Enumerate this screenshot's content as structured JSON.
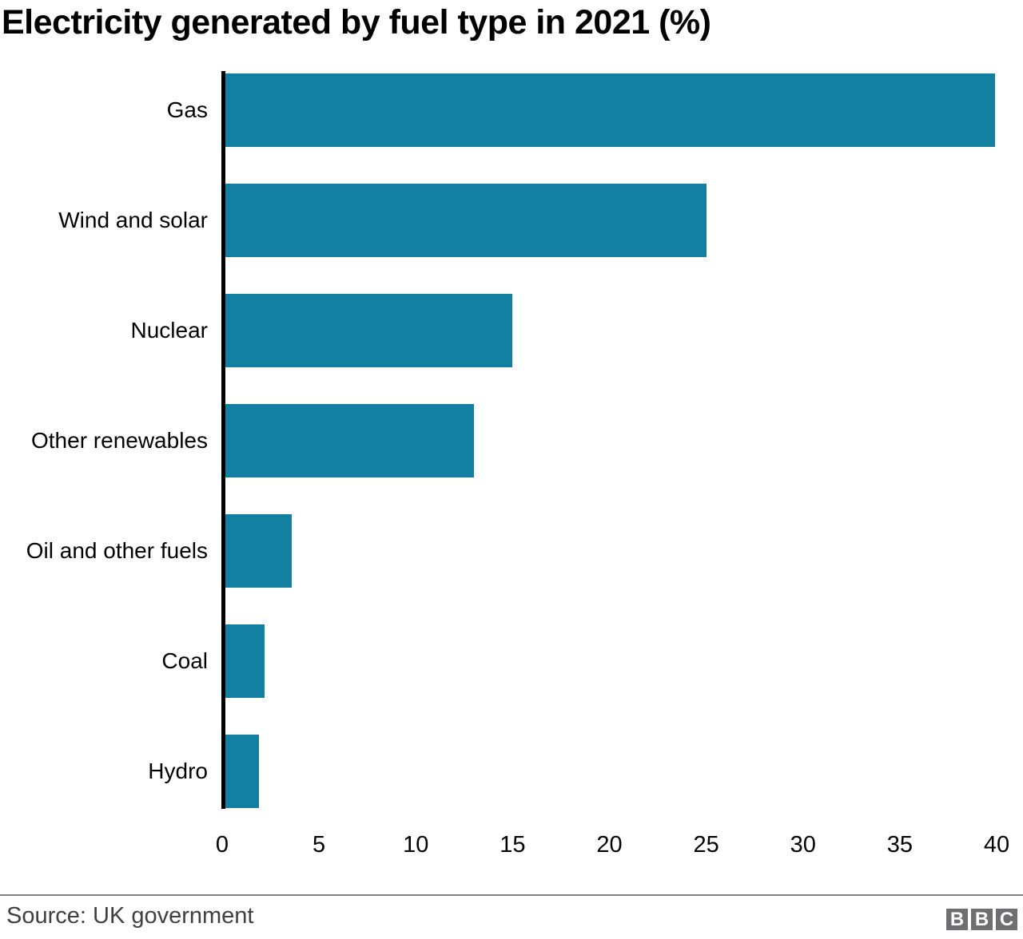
{
  "chart_data": {
    "type": "bar",
    "orientation": "horizontal",
    "title": "Electricity generated by fuel type in 2021 (%)",
    "categories": [
      "Gas",
      "Wind and solar",
      "Nuclear",
      "Other renewables",
      "Oil and other fuels",
      "Coal",
      "Hydro"
    ],
    "values": [
      39.9,
      25,
      15,
      13,
      3.6,
      2.2,
      1.9
    ],
    "xlabel": "",
    "ylabel": "",
    "xlim": [
      0,
      40
    ],
    "xticks": [
      0,
      5,
      10,
      15,
      20,
      25,
      30,
      35,
      40
    ],
    "grid": false,
    "legend": "none",
    "bar_color": "#1380A1",
    "axis_color": "#000000",
    "text_color": "#000000"
  },
  "footer": {
    "source": "Source: UK government",
    "source_color": "#404040",
    "divider_color": "#808080",
    "logo": {
      "letters": [
        "B",
        "B",
        "C"
      ],
      "block_color": "#6e6e73",
      "letter_color": "#ffffff"
    }
  }
}
